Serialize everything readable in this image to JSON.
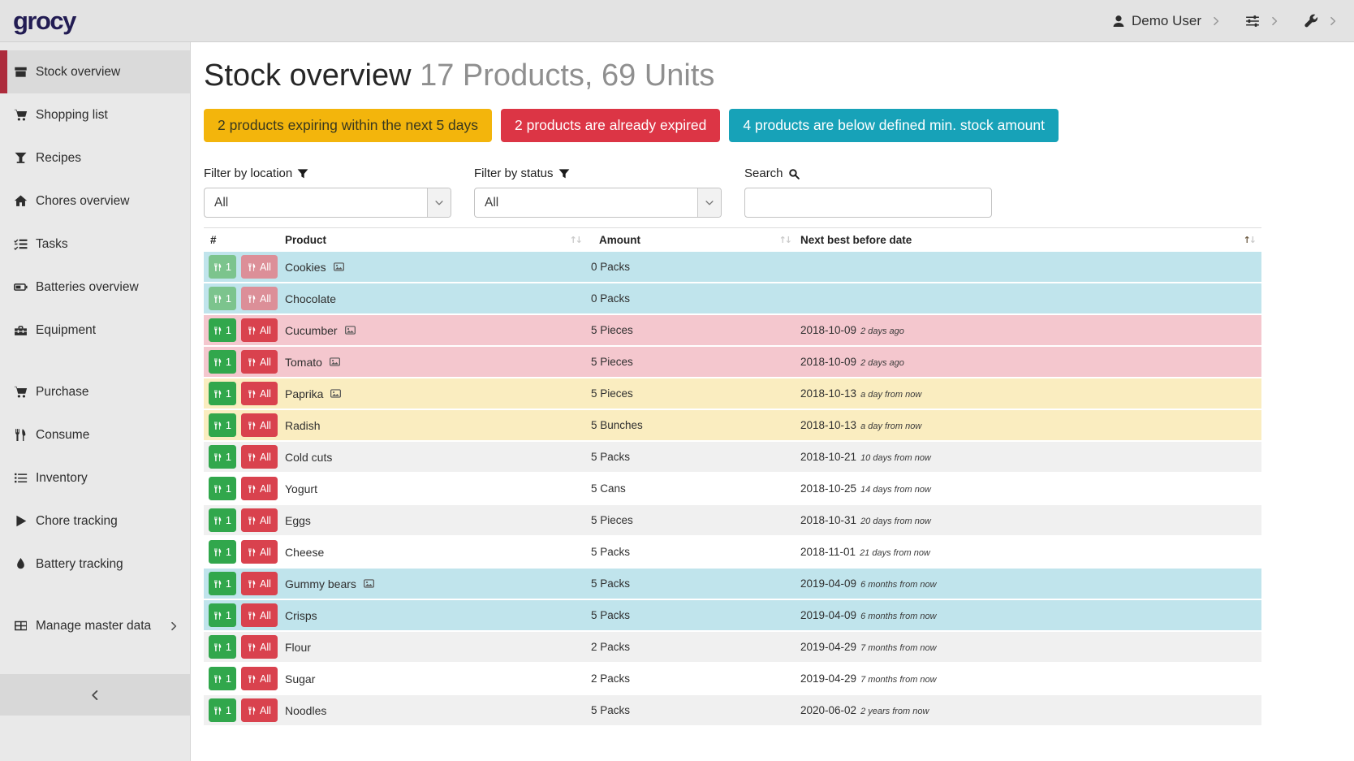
{
  "header": {
    "logo": "grocy",
    "user_label": "Demo User"
  },
  "sidebar": {
    "items": [
      {
        "label": "Stock overview",
        "icon": "stock-box-icon",
        "active": true
      },
      {
        "label": "Shopping list",
        "icon": "shopping-cart-icon"
      },
      {
        "label": "Recipes",
        "icon": "cocktail-glass-icon"
      },
      {
        "label": "Chores overview",
        "icon": "home-icon"
      },
      {
        "label": "Tasks",
        "icon": "tasks-checklist-icon"
      },
      {
        "label": "Batteries overview",
        "icon": "battery-icon"
      },
      {
        "label": "Equipment",
        "icon": "toolbox-icon"
      },
      {
        "label": "Purchase",
        "icon": "shopping-cart-icon",
        "gap_before": true
      },
      {
        "label": "Consume",
        "icon": "utensils-icon"
      },
      {
        "label": "Inventory",
        "icon": "list-icon"
      },
      {
        "label": "Chore tracking",
        "icon": "play-icon"
      },
      {
        "label": "Battery tracking",
        "icon": "drop-icon"
      },
      {
        "label": "Manage master data",
        "icon": "table-grid-icon",
        "chevron": true,
        "gap_before": true
      }
    ]
  },
  "page": {
    "title": "Stock overview",
    "subtitle": "17 Products, 69 Units"
  },
  "alerts": [
    {
      "text": "2 products expiring within the next 5 days",
      "type": "warning"
    },
    {
      "text": "2 products are already expired",
      "type": "danger"
    },
    {
      "text": "4 products are below defined min. stock amount",
      "type": "info"
    }
  ],
  "filters": {
    "location_label": "Filter by location",
    "status_label": "Filter by status",
    "search_label": "Search",
    "location_value": "All",
    "status_value": "All",
    "search_value": ""
  },
  "table": {
    "columns": [
      "#",
      "Product",
      "Amount",
      "Next best before date"
    ],
    "consume_one_label": "1",
    "consume_all_label": "All",
    "rows": [
      {
        "product": "Cookies",
        "has_image": true,
        "amount": "0 Packs",
        "date": "",
        "relative": "",
        "status": "info",
        "muted": true
      },
      {
        "product": "Chocolate",
        "has_image": false,
        "amount": "0 Packs",
        "date": "",
        "relative": "",
        "status": "info",
        "muted": true
      },
      {
        "product": "Cucumber",
        "has_image": true,
        "amount": "5 Pieces",
        "date": "2018-10-09",
        "relative": "2 days ago",
        "status": "danger",
        "muted": false
      },
      {
        "product": "Tomato",
        "has_image": true,
        "amount": "5 Pieces",
        "date": "2018-10-09",
        "relative": "2 days ago",
        "status": "danger",
        "muted": false
      },
      {
        "product": "Paprika",
        "has_image": true,
        "amount": "5 Pieces",
        "date": "2018-10-13",
        "relative": "a day from now",
        "status": "warning",
        "muted": false
      },
      {
        "product": "Radish",
        "has_image": false,
        "amount": "5 Bunches",
        "date": "2018-10-13",
        "relative": "a day from now",
        "status": "warning",
        "muted": false
      },
      {
        "product": "Cold cuts",
        "has_image": false,
        "amount": "5 Packs",
        "date": "2018-10-21",
        "relative": "10 days from now",
        "status": "stripe",
        "muted": false
      },
      {
        "product": "Yogurt",
        "has_image": false,
        "amount": "5 Cans",
        "date": "2018-10-25",
        "relative": "14 days from now",
        "status": "plain",
        "muted": false
      },
      {
        "product": "Eggs",
        "has_image": false,
        "amount": "5 Pieces",
        "date": "2018-10-31",
        "relative": "20 days from now",
        "status": "stripe",
        "muted": false
      },
      {
        "product": "Cheese",
        "has_image": false,
        "amount": "5 Packs",
        "date": "2018-11-01",
        "relative": "21 days from now",
        "status": "plain",
        "muted": false
      },
      {
        "product": "Gummy bears",
        "has_image": true,
        "amount": "5 Packs",
        "date": "2019-04-09",
        "relative": "6 months from now",
        "status": "info",
        "muted": false
      },
      {
        "product": "Crisps",
        "has_image": false,
        "amount": "5 Packs",
        "date": "2019-04-09",
        "relative": "6 months from now",
        "status": "info",
        "muted": false
      },
      {
        "product": "Flour",
        "has_image": false,
        "amount": "2 Packs",
        "date": "2019-04-29",
        "relative": "7 months from now",
        "status": "stripe",
        "muted": false
      },
      {
        "product": "Sugar",
        "has_image": false,
        "amount": "2 Packs",
        "date": "2019-04-29",
        "relative": "7 months from now",
        "status": "plain",
        "muted": false
      },
      {
        "product": "Noodles",
        "has_image": false,
        "amount": "5 Packs",
        "date": "2020-06-02",
        "relative": "2 years from now",
        "status": "stripe",
        "muted": false
      }
    ]
  },
  "colors": {
    "brand": "#221c53",
    "sidebar_active_accent": "#ad2b3c",
    "warning": "#f3b50c",
    "danger": "#dc3545",
    "info": "#17a2b8",
    "row_info": "#c0e4ec",
    "row_danger": "#f4c7ce",
    "row_warning": "#faedc0",
    "row_stripe": "#f0f0f0",
    "green": "#31a74c",
    "green_muted": "#7cc48d",
    "red": "#d9424e",
    "red_muted": "#dc8f98"
  }
}
